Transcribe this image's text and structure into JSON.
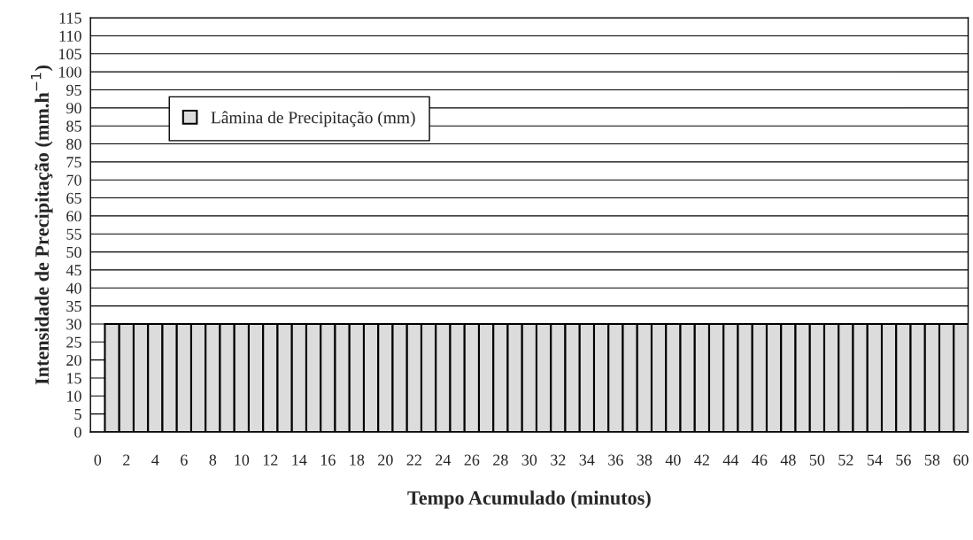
{
  "chart_data": {
    "type": "bar",
    "xlabel": "Tempo Acumulado (minutos)",
    "ylabel": "Intensidade de Precipitação (mm.h$^{−1}$)",
    "categories": [
      "0",
      null,
      "2",
      null,
      "4",
      null,
      "6",
      null,
      "8",
      null,
      "10",
      null,
      "12",
      null,
      "14",
      null,
      "16",
      null,
      "18",
      null,
      "20",
      null,
      "22",
      null,
      "24",
      null,
      "26",
      null,
      "28",
      null,
      "30",
      null,
      "32",
      null,
      "34",
      null,
      "36",
      null,
      "38",
      null,
      "40",
      null,
      "42",
      null,
      "44",
      null,
      "46",
      null,
      "48",
      null,
      "50",
      null,
      "52",
      null,
      "54",
      null,
      "56",
      null,
      "58",
      null,
      "60"
    ],
    "series": [
      {
        "name": "Lâmina de Precipitação (mm)",
        "color": "#dcdcdc",
        "values": [
          null,
          30,
          30,
          30,
          30,
          30,
          30,
          30,
          30,
          30,
          30,
          30,
          30,
          30,
          30,
          30,
          30,
          30,
          30,
          30,
          30,
          30,
          30,
          30,
          30,
          30,
          30,
          30,
          30,
          30,
          30,
          30,
          30,
          30,
          30,
          30,
          30,
          30,
          30,
          30,
          30,
          30,
          30,
          30,
          30,
          30,
          30,
          30,
          30,
          30,
          30,
          30,
          30,
          30,
          30,
          30,
          30,
          30,
          30,
          30,
          30
        ]
      }
    ],
    "ylim": [
      0,
      115
    ],
    "yticks": [
      0,
      5,
      10,
      15,
      20,
      25,
      30,
      35,
      40,
      45,
      50,
      55,
      60,
      65,
      70,
      75,
      80,
      85,
      90,
      95,
      100,
      105,
      110,
      115
    ],
    "grid": "y",
    "legend": "top left"
  }
}
